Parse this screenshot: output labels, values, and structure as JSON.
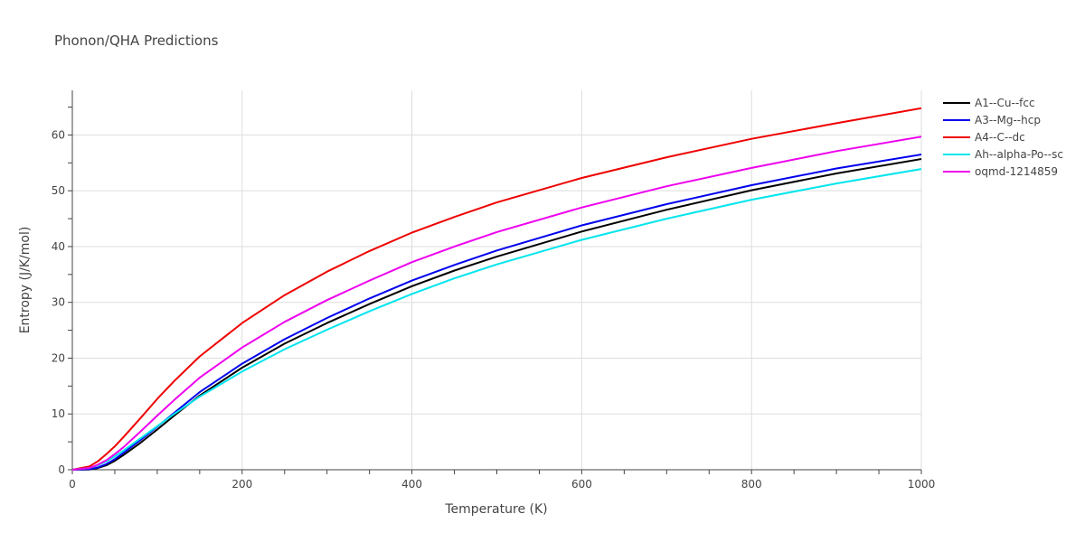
{
  "chart_data": {
    "type": "line",
    "title": "Phonon/QHA Predictions",
    "xlabel": "Temperature (K)",
    "ylabel": "Entropy (J/K/mol)",
    "xlim": [
      0,
      1000
    ],
    "ylim": [
      0,
      68
    ],
    "x_ticks": [
      0,
      200,
      400,
      600,
      800,
      1000
    ],
    "y_ticks": [
      0,
      10,
      20,
      30,
      40,
      50,
      60
    ],
    "grid": true,
    "legend_position": "top-right",
    "series": [
      {
        "name": "A1--Cu--fcc",
        "color": "#000000",
        "x": [
          0,
          20,
          30,
          40,
          50,
          60,
          80,
          100,
          120,
          150,
          200,
          250,
          300,
          350,
          400,
          450,
          500,
          600,
          700,
          800,
          900,
          1000
        ],
        "y": [
          0,
          0.05,
          0.3,
          0.8,
          1.6,
          2.6,
          4.8,
          7.2,
          9.7,
          13.3,
          18.3,
          22.6,
          26.3,
          29.7,
          32.9,
          35.7,
          38.2,
          42.7,
          46.6,
          50.1,
          53.1,
          55.7
        ]
      },
      {
        "name": "A3--Mg--hcp",
        "color": "#0000ee",
        "x": [
          0,
          20,
          30,
          40,
          50,
          60,
          80,
          100,
          120,
          150,
          200,
          250,
          300,
          350,
          400,
          450,
          500,
          600,
          700,
          800,
          900,
          1000
        ],
        "y": [
          0,
          0.1,
          0.4,
          1.0,
          1.9,
          3.0,
          5.3,
          7.7,
          10.2,
          13.9,
          19.0,
          23.4,
          27.2,
          30.7,
          33.9,
          36.7,
          39.3,
          43.8,
          47.6,
          51.0,
          54.0,
          56.5
        ]
      },
      {
        "name": "A4--C--dc",
        "color": "#ee0000",
        "x": [
          0,
          20,
          30,
          40,
          50,
          60,
          80,
          100,
          120,
          150,
          200,
          250,
          300,
          350,
          400,
          450,
          500,
          600,
          700,
          800,
          900,
          1000
        ],
        "y": [
          0,
          0.6,
          1.5,
          2.8,
          4.2,
          5.8,
          9.2,
          12.7,
          15.9,
          20.3,
          26.3,
          31.3,
          35.5,
          39.2,
          42.5,
          45.3,
          47.9,
          52.3,
          56.0,
          59.3,
          62.1,
          64.8
        ]
      },
      {
        "name": "Ah--alpha-Po--sc",
        "color": "#00e5ee",
        "x": [
          0,
          20,
          30,
          40,
          50,
          60,
          80,
          100,
          120,
          150,
          200,
          250,
          300,
          350,
          400,
          450,
          500,
          600,
          700,
          800,
          900,
          1000
        ],
        "y": [
          0,
          0.3,
          0.8,
          1.5,
          2.4,
          3.4,
          5.6,
          7.8,
          10.0,
          13.1,
          17.6,
          21.6,
          25.1,
          28.4,
          31.5,
          34.3,
          36.8,
          41.2,
          45.0,
          48.4,
          51.3,
          53.9
        ]
      },
      {
        "name": "oqmd-1214859",
        "color": "#ee00ee",
        "x": [
          0,
          20,
          30,
          40,
          50,
          60,
          80,
          100,
          120,
          150,
          200,
          250,
          300,
          350,
          400,
          450,
          500,
          600,
          700,
          800,
          900,
          1000
        ],
        "y": [
          0,
          0.3,
          0.9,
          1.7,
          2.8,
          4.0,
          6.8,
          9.7,
          12.5,
          16.5,
          21.9,
          26.5,
          30.4,
          33.9,
          37.2,
          40.0,
          42.6,
          47.0,
          50.8,
          54.1,
          57.1,
          59.7
        ]
      }
    ]
  }
}
